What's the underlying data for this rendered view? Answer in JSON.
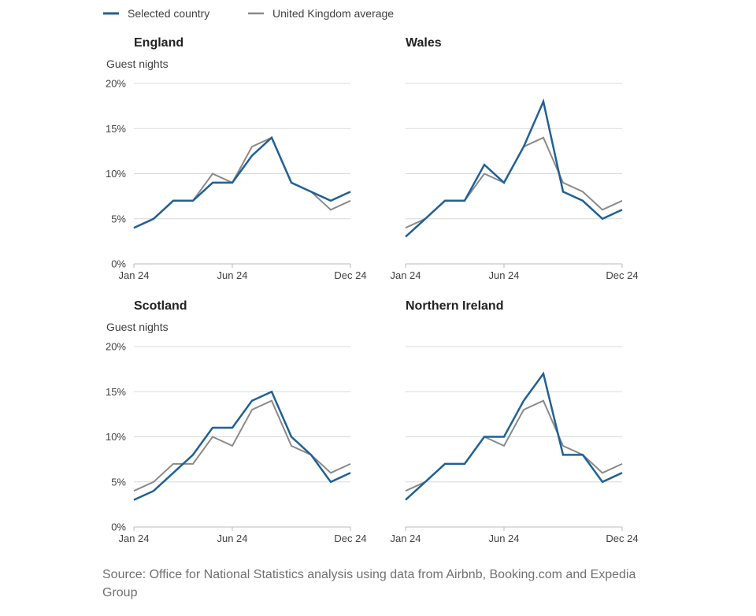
{
  "legend": {
    "selected_label": "Selected country",
    "average_label": "United Kingdom average"
  },
  "colors": {
    "selected": "#206095",
    "average": "#8a8a8a",
    "grid": "#d9d9d9",
    "axis": "#bbbbbb"
  },
  "source": "Source: Office for National Statistics analysis using data from Airbnb, Booking.com and Expedia Group",
  "chart_data": [
    {
      "type": "line",
      "title": "England",
      "ylabel": "Guest nights",
      "x": [
        "Jan 24",
        "Feb 24",
        "Mar 24",
        "Apr 24",
        "May 24",
        "Jun 24",
        "Jul 24",
        "Aug 24",
        "Sep 24",
        "Oct 24",
        "Nov 24",
        "Dec 24"
      ],
      "x_tick_labels": [
        "Jan 24",
        "Jun 24",
        "Dec 24"
      ],
      "y_ticks": [
        "0%",
        "5%",
        "10%",
        "15%",
        "20%"
      ],
      "ylim": [
        0,
        20
      ],
      "grid": true,
      "series": [
        {
          "name": "Selected country",
          "values": [
            4,
            5,
            7,
            7,
            9,
            9,
            12,
            14,
            9,
            8,
            7,
            8
          ]
        },
        {
          "name": "United Kingdom average",
          "values": [
            4,
            5,
            7,
            7,
            10,
            9,
            13,
            14,
            9,
            8,
            6,
            7
          ]
        }
      ]
    },
    {
      "type": "line",
      "title": "Wales",
      "ylabel": "",
      "x": [
        "Jan 24",
        "Feb 24",
        "Mar 24",
        "Apr 24",
        "May 24",
        "Jun 24",
        "Jul 24",
        "Aug 24",
        "Sep 24",
        "Oct 24",
        "Nov 24",
        "Dec 24"
      ],
      "x_tick_labels": [
        "Jan 24",
        "Jun 24",
        "Dec 24"
      ],
      "y_ticks": [],
      "ylim": [
        0,
        20
      ],
      "grid": true,
      "series": [
        {
          "name": "Selected country",
          "values": [
            3,
            5,
            7,
            7,
            11,
            9,
            13,
            18,
            8,
            7,
            5,
            6
          ]
        },
        {
          "name": "United Kingdom average",
          "values": [
            4,
            5,
            7,
            7,
            10,
            9,
            13,
            14,
            9,
            8,
            6,
            7
          ]
        }
      ]
    },
    {
      "type": "line",
      "title": "Scotland",
      "ylabel": "Guest nights",
      "x": [
        "Jan 24",
        "Feb 24",
        "Mar 24",
        "Apr 24",
        "May 24",
        "Jun 24",
        "Jul 24",
        "Aug 24",
        "Sep 24",
        "Oct 24",
        "Nov 24",
        "Dec 24"
      ],
      "x_tick_labels": [
        "Jan 24",
        "Jun 24",
        "Dec 24"
      ],
      "y_ticks": [
        "0%",
        "5%",
        "10%",
        "15%",
        "20%"
      ],
      "ylim": [
        0,
        20
      ],
      "grid": true,
      "series": [
        {
          "name": "Selected country",
          "values": [
            3,
            4,
            6,
            8,
            11,
            11,
            14,
            15,
            10,
            8,
            5,
            6
          ]
        },
        {
          "name": "United Kingdom average",
          "values": [
            4,
            5,
            7,
            7,
            10,
            9,
            13,
            14,
            9,
            8,
            6,
            7
          ]
        }
      ]
    },
    {
      "type": "line",
      "title": "Northern Ireland",
      "ylabel": "",
      "x": [
        "Jan 24",
        "Feb 24",
        "Mar 24",
        "Apr 24",
        "May 24",
        "Jun 24",
        "Jul 24",
        "Aug 24",
        "Sep 24",
        "Oct 24",
        "Nov 24",
        "Dec 24"
      ],
      "x_tick_labels": [
        "Jan 24",
        "Jun 24",
        "Dec 24"
      ],
      "y_ticks": [],
      "ylim": [
        0,
        20
      ],
      "grid": true,
      "series": [
        {
          "name": "Selected country",
          "values": [
            3,
            5,
            7,
            7,
            10,
            10,
            14,
            17,
            8,
            8,
            5,
            6
          ]
        },
        {
          "name": "United Kingdom average",
          "values": [
            4,
            5,
            7,
            7,
            10,
            9,
            13,
            14,
            9,
            8,
            6,
            7
          ]
        }
      ]
    }
  ]
}
